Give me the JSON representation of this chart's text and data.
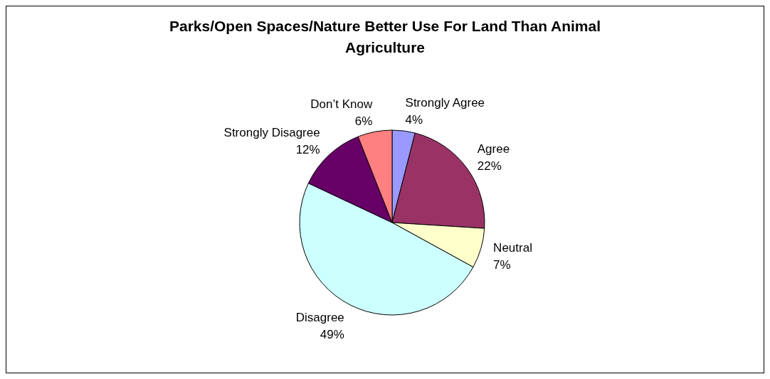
{
  "chart_data": {
    "type": "pie",
    "title": "Parks/Open Spaces/Nature Better Use For Land Than Animal Agriculture",
    "categories": [
      "Strongly Agree",
      "Agree",
      "Neutral",
      "Disagree",
      "Strongly Disagree",
      "Don’t Know"
    ],
    "values": [
      4,
      22,
      7,
      49,
      12,
      6
    ],
    "value_labels": [
      "4%",
      "22%",
      "7%",
      "49%",
      "12%",
      "6%"
    ],
    "colors": [
      "#9999ff",
      "#993366",
      "#ffffcc",
      "#ccffff",
      "#660066",
      "#ff8080"
    ]
  }
}
